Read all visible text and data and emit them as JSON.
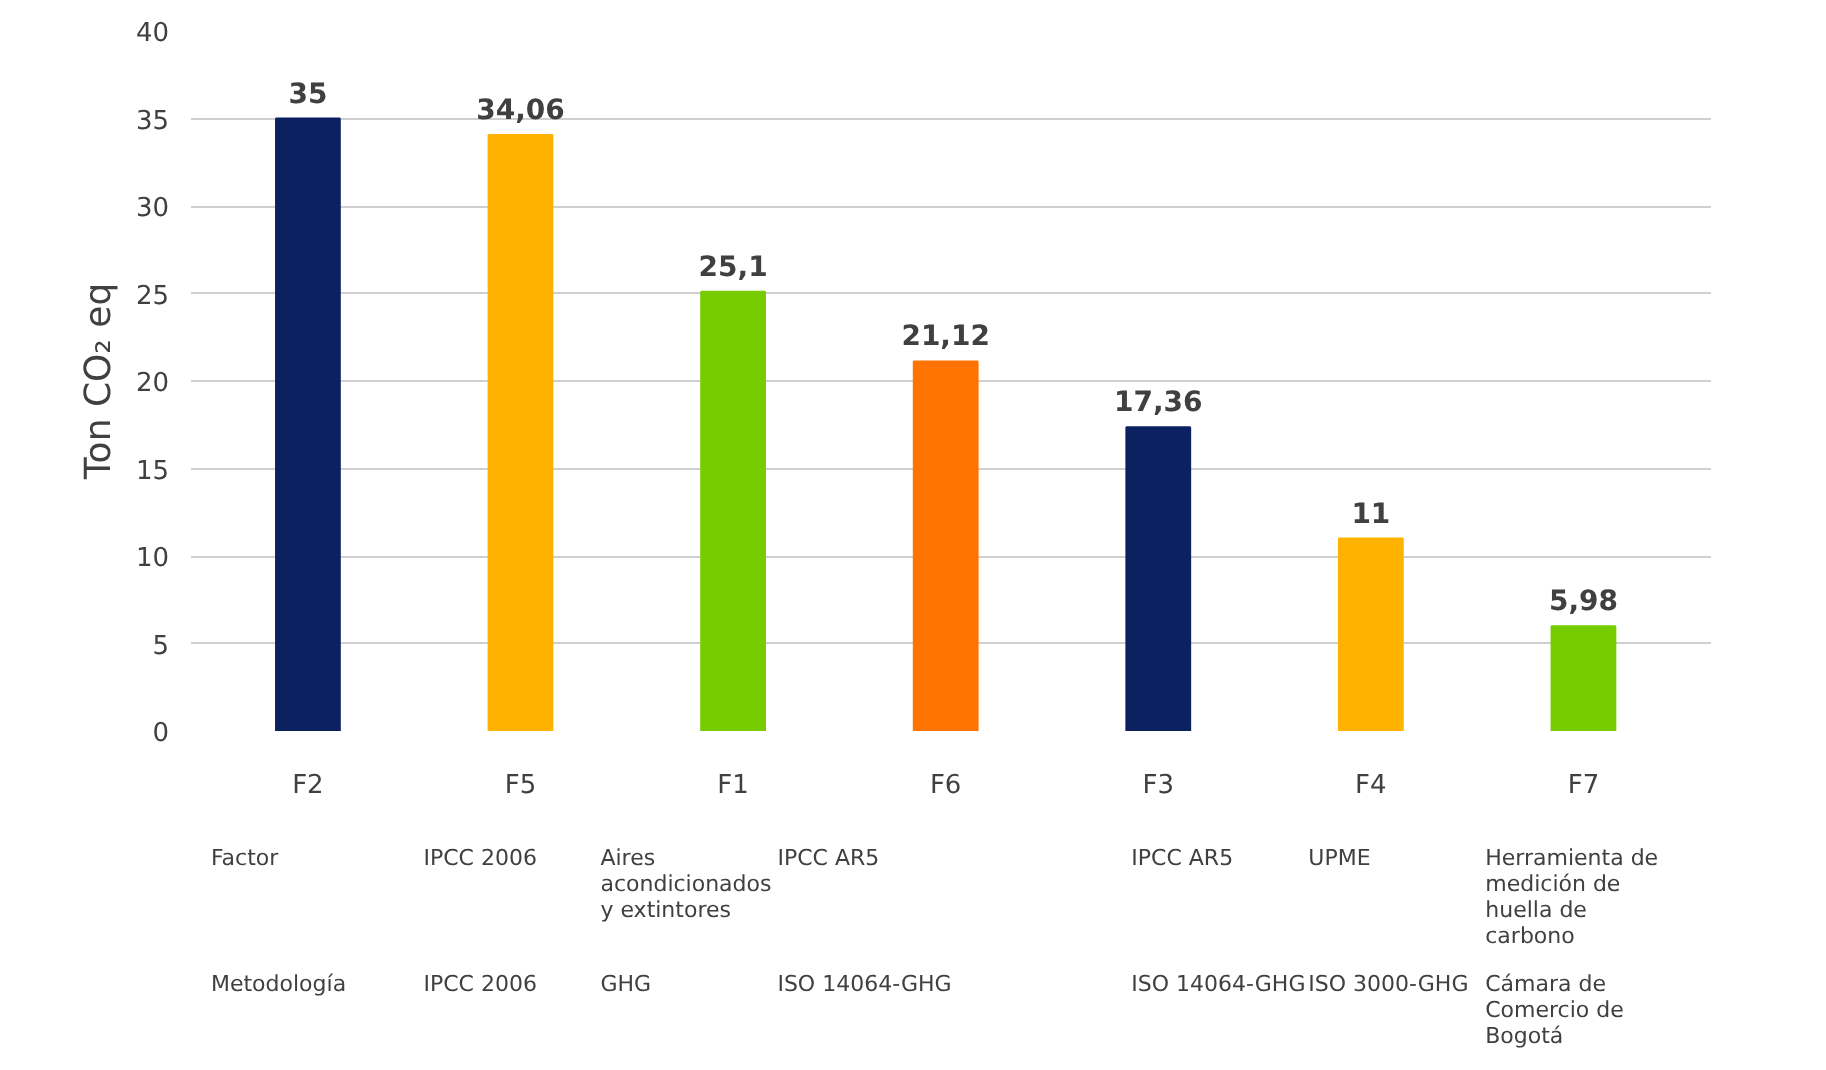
{
  "chart_data": {
    "type": "bar",
    "ylabel": "Ton CO₂ eq",
    "categories": [
      "F2",
      "F5",
      "F1",
      "F6",
      "F3",
      "F4",
      "F7"
    ],
    "values": [
      35,
      34.06,
      25.1,
      21.12,
      17.36,
      11,
      5.98
    ],
    "value_labels": [
      "35",
      "34,06",
      "25,1",
      "21,12",
      "17,36",
      "11",
      "5,98"
    ],
    "colors": [
      "#0b2160",
      "#ffb300",
      "#77cc00",
      "#ff7300",
      "#0b2160",
      "#ffb300",
      "#77cc00"
    ],
    "ylim": [
      0,
      40
    ],
    "yticks": [
      0,
      5,
      10,
      15,
      20,
      25,
      30,
      35,
      40
    ],
    "grid": "y",
    "annotations": [
      "Factor",
      "IPCC 2006",
      "Aires acondicionados y extintores",
      "IPCC AR5",
      "IPCC AR5",
      "UPME",
      "Herramienta de medición de huella de carbono",
      "Metodología",
      "IPCC 2006",
      "GHG",
      "ISO 14064-GHG",
      "ISO 14064-GHG",
      "ISO 3000-GHG",
      "Cámara de Comercio de Bogotá"
    ]
  }
}
